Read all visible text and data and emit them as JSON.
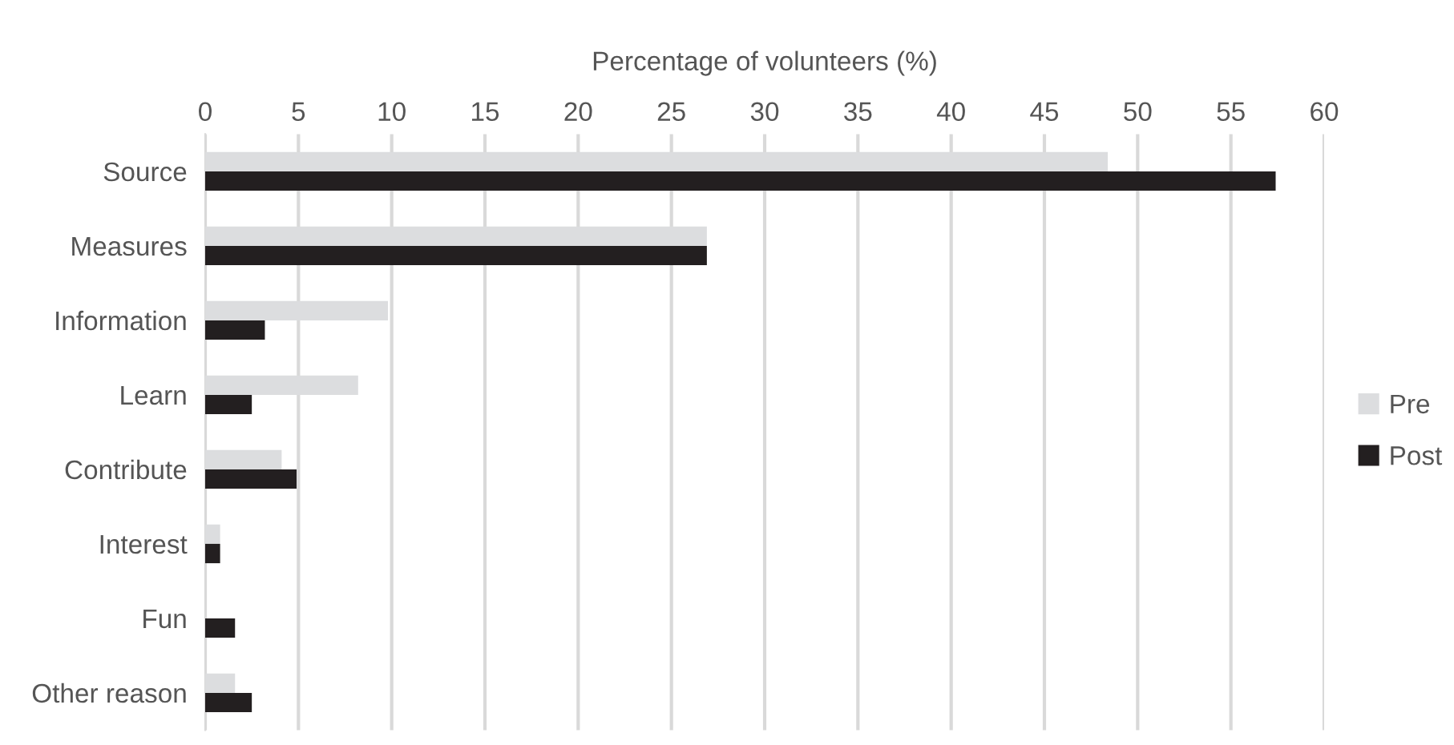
{
  "chart_data": {
    "type": "bar",
    "orientation": "horizontal",
    "xlabel": "Percentage of volunteers (%)",
    "categories": [
      "Source",
      "Measures",
      "Information",
      "Learn",
      "Contribute",
      "Interest",
      "Fun",
      "Other reason"
    ],
    "series": [
      {
        "name": "Pre",
        "color": "#dcdddf",
        "values": [
          48.4,
          26.9,
          9.8,
          8.2,
          4.1,
          0.8,
          0,
          1.6
        ]
      },
      {
        "name": "Post",
        "color": "#231f20",
        "values": [
          57.4,
          26.9,
          3.2,
          2.5,
          4.9,
          0.8,
          1.6,
          2.5
        ]
      }
    ],
    "xlim": [
      0,
      60
    ],
    "xticks": [
      0,
      5,
      10,
      15,
      20,
      25,
      30,
      35,
      40,
      45,
      50,
      55,
      60
    ],
    "grid": "x",
    "legend": "right"
  }
}
